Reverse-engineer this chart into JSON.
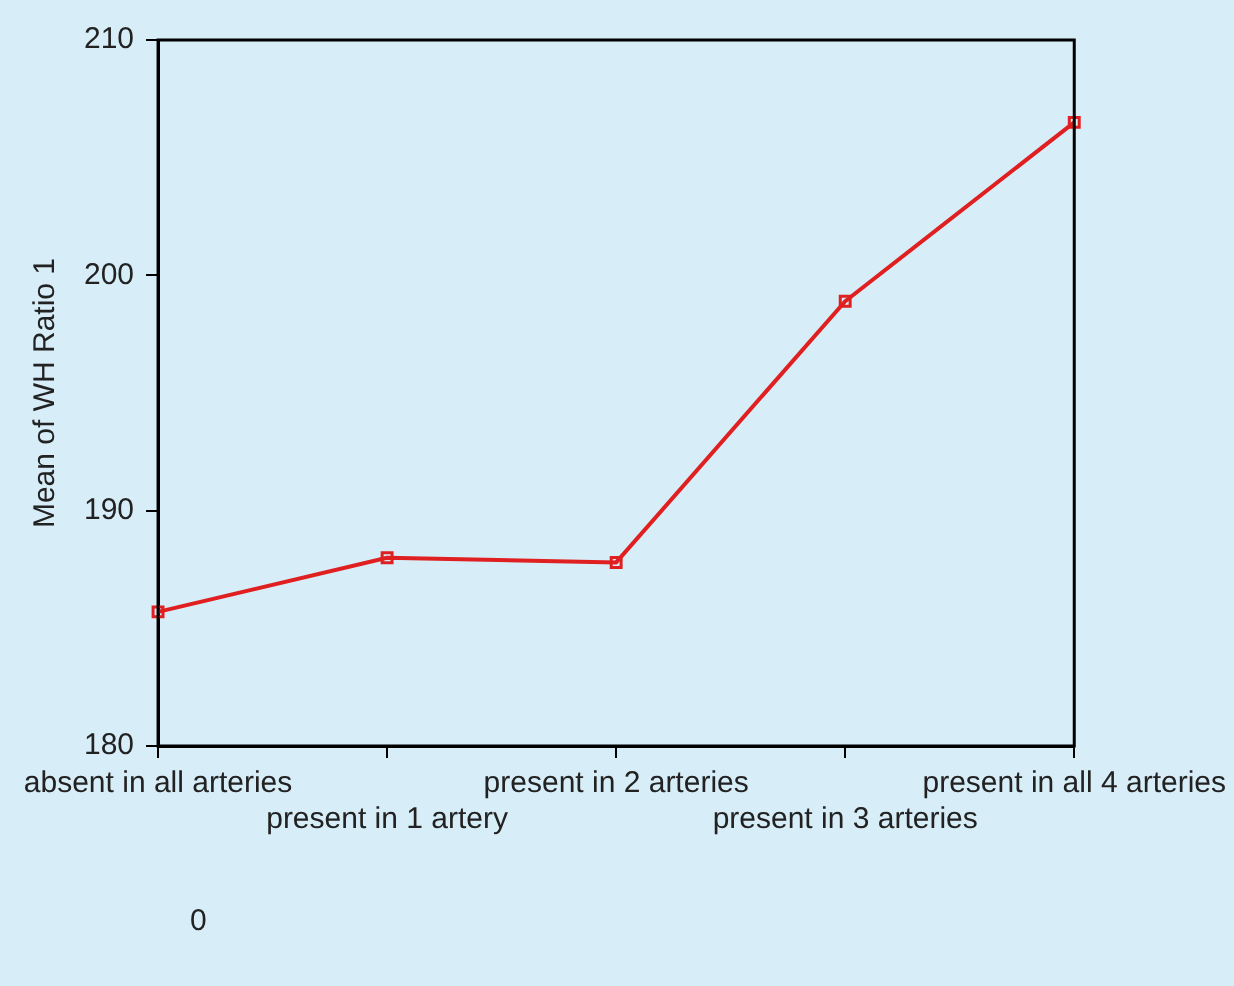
{
  "chart_data": {
    "type": "line",
    "ylabel": "Mean of WH Ratio 1",
    "categories": [
      "absent in all arteries",
      "present in 1 artery",
      "present in 2 arteries",
      "present in 3 arteries",
      "present in all 4 arteries"
    ],
    "series": [
      {
        "color": "#e02020",
        "values": [
          185.7,
          188.0,
          187.8,
          198.9,
          206.5
        ]
      }
    ],
    "ylim": [
      180,
      210
    ],
    "yticks": [
      180,
      190,
      200,
      210
    ],
    "grid": false,
    "legend": false,
    "marker": "square",
    "line_style": "solid",
    "annotations": [
      "0"
    ]
  }
}
